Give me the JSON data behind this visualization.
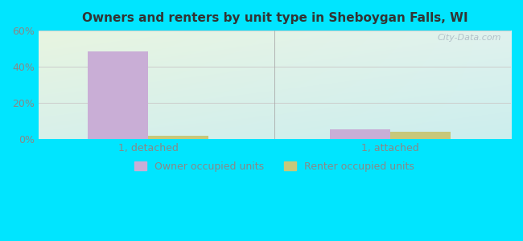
{
  "title": "Owners and renters by unit type in Sheboygan Falls, WI",
  "categories": [
    "1, detached",
    "1, attached"
  ],
  "owner_values": [
    48.5,
    5.5
  ],
  "renter_values": [
    2.0,
    4.0
  ],
  "owner_color": "#c9aed6",
  "renter_color": "#c8c87a",
  "ylim": [
    0,
    60
  ],
  "yticks": [
    0,
    20,
    40,
    60
  ],
  "yticklabels": [
    "0%",
    "20%",
    "40%",
    "60%"
  ],
  "background_color": "#00e5ff",
  "title_color": "#333333",
  "tick_color": "#888888",
  "legend_owner": "Owner occupied units",
  "legend_renter": "Renter occupied units",
  "watermark": "City-Data.com",
  "bar_width": 0.55,
  "group_positions": [
    1.0,
    3.2
  ]
}
